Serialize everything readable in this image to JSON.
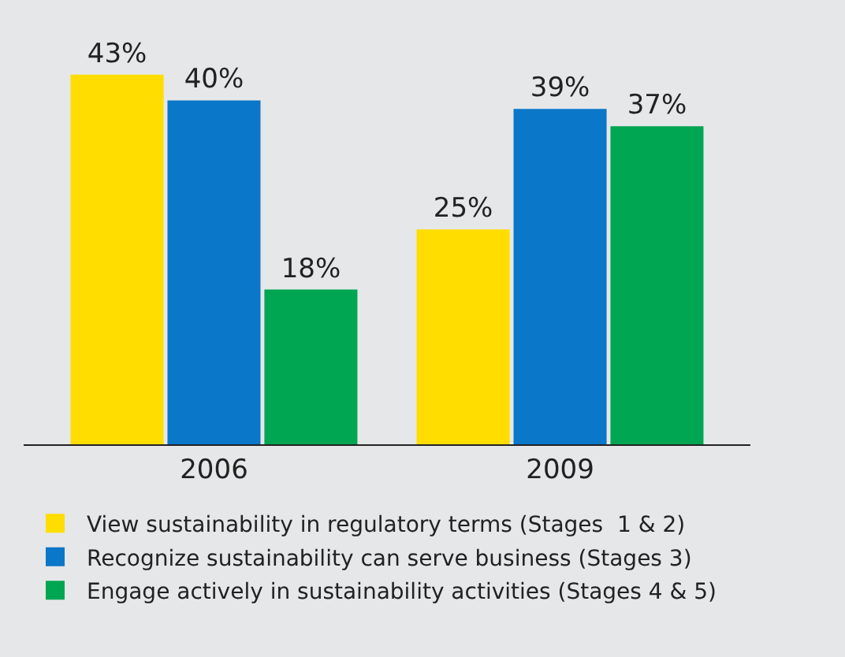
{
  "chart_data": {
    "type": "bar",
    "categories": [
      "2006",
      "2009"
    ],
    "series": [
      {
        "name": "View sustainability in regulatory terms (Stages  1 & 2)",
        "color": "#ffdd00",
        "values": [
          43,
          25
        ],
        "value_labels": [
          "43%",
          "25%"
        ]
      },
      {
        "name": "Recognize sustainability can serve business (Stages 3)",
        "color": "#0a77c8",
        "values": [
          40,
          39
        ],
        "value_labels": [
          "40%",
          "39%"
        ]
      },
      {
        "name": "Engage actively in sustainability activities (Stages 4 & 5)",
        "color": "#00a651",
        "values": [
          18,
          37
        ],
        "value_labels": [
          "18%",
          "37%"
        ]
      }
    ],
    "legend": "bottom"
  }
}
